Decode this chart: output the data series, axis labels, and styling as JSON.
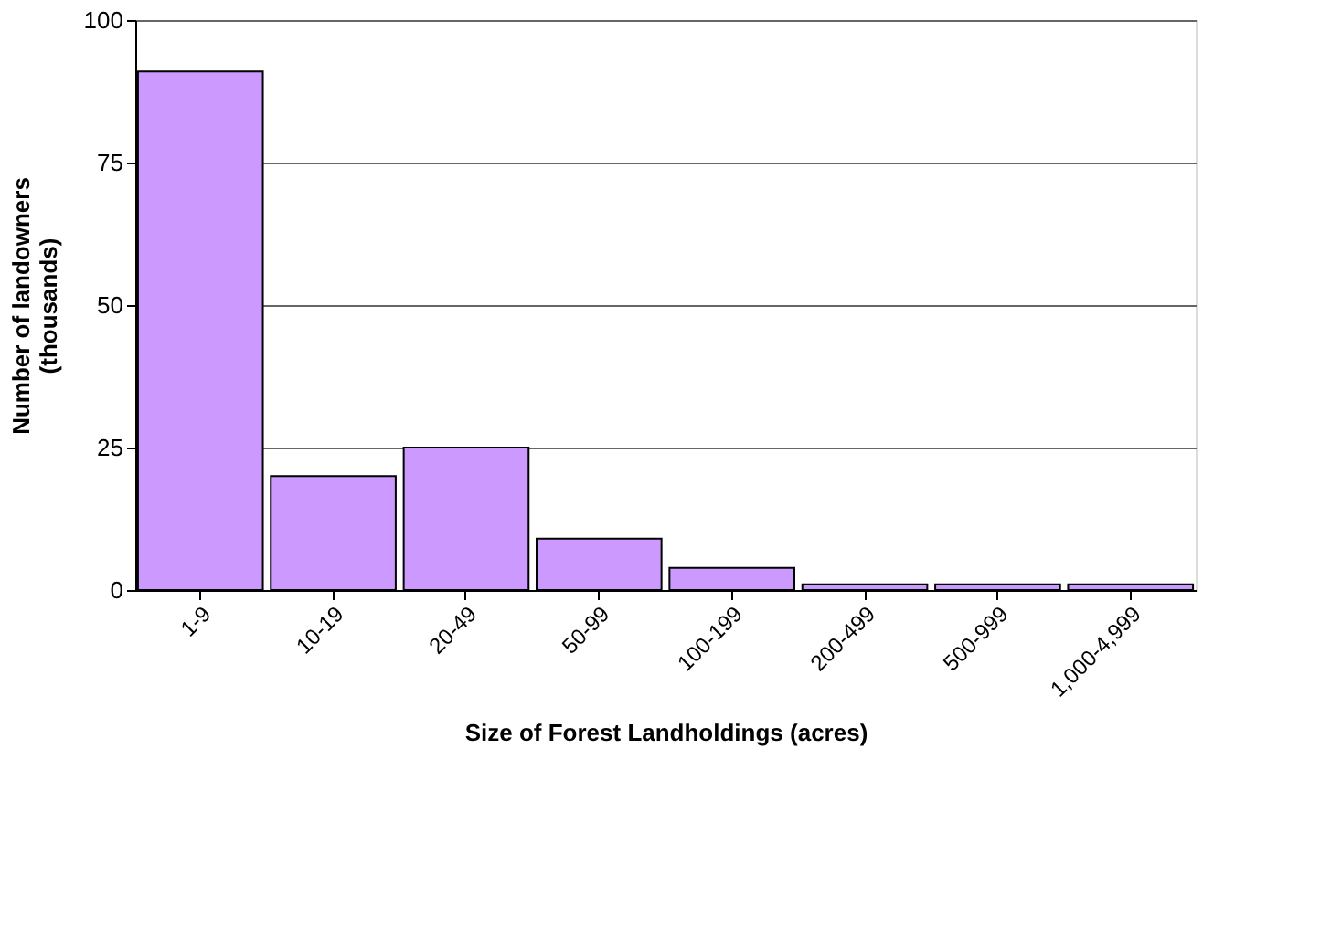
{
  "chart_data": {
    "type": "bar",
    "categories": [
      "1-9",
      "10-19",
      "20-49",
      "50-99",
      "100-199",
      "200-499",
      "500-999",
      "1,000-4,999"
    ],
    "values": [
      91,
      20,
      25,
      9,
      3.9,
      1,
      1,
      1
    ],
    "color": "#cc99ff",
    "xlabel": "Size of Forest Landholdings (acres)",
    "ylabel": "Number of landowners\n(thousands)",
    "ylim": [
      0,
      100
    ],
    "yticks": [
      0,
      25,
      50,
      75,
      100
    ],
    "grid": "y"
  }
}
